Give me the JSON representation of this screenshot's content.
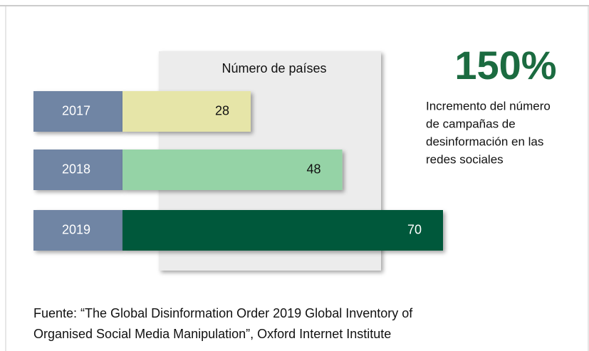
{
  "chart_data": {
    "type": "bar",
    "subtitle": "Número de países",
    "categories": [
      "2017",
      "2018",
      "2019"
    ],
    "values": [
      28,
      48,
      70
    ],
    "colors": [
      "#e6e5a8",
      "#95d3a6",
      "#00593a"
    ],
    "label_colors": [
      "#111111",
      "#111111",
      "#ffffff"
    ],
    "category_color": "#6f85a4",
    "highlight": "150%",
    "highlight_color": "#1b6b40",
    "highlight_text": [
      "Incremento del número",
      "de campañas de",
      "desinformación en las",
      "redes sociales"
    ],
    "source": [
      "Fuente: “The Global Disinformation Order 2019 Global Inventory of",
      "Organised Social Media Manipulation”, Oxford Internet Institute"
    ]
  }
}
